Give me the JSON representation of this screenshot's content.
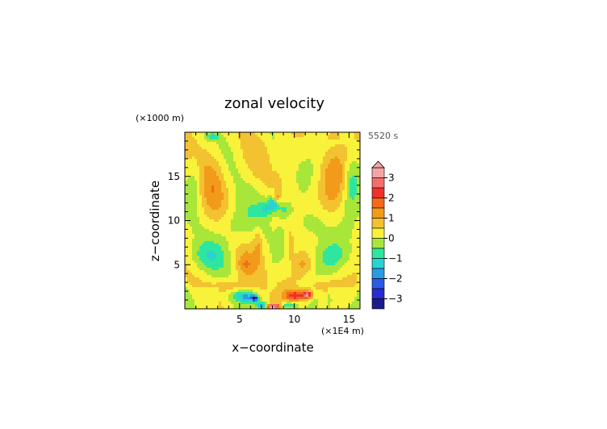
{
  "chart_data": {
    "type": "heatmap",
    "title": "zonal velocity",
    "xlabel": "x−coordinate",
    "ylabel": "z−coordinate",
    "x_unit_label": "(×1E4 m)",
    "y_unit_label": "(×1000 m)",
    "time_label": "5520 s",
    "xlim": [
      0,
      16
    ],
    "ylim": [
      0,
      20
    ],
    "x_ticks": [
      "5",
      "10",
      "15"
    ],
    "x_tick_values": [
      5,
      10,
      15
    ],
    "y_ticks": [
      "5",
      "10",
      "15"
    ],
    "y_tick_values": [
      5,
      10,
      15
    ],
    "colorbar": {
      "tick_labels": [
        "3",
        "2",
        "1",
        "0",
        "−1",
        "−2",
        "−3"
      ],
      "tick_values": [
        3,
        2,
        1,
        0,
        -1,
        -2,
        -3
      ],
      "min": -3.5,
      "max": 3.5,
      "extend": "max",
      "levels": [
        {
          "lo": 3.0,
          "hi": 3.5,
          "color": "#f4a6a6"
        },
        {
          "lo": 2.5,
          "hi": 3.0,
          "color": "#f46e6e"
        },
        {
          "lo": 2.0,
          "hi": 2.5,
          "color": "#f0302a"
        },
        {
          "lo": 1.5,
          "hi": 2.0,
          "color": "#f26a1a"
        },
        {
          "lo": 1.0,
          "hi": 1.5,
          "color": "#f29a1a"
        },
        {
          "lo": 0.5,
          "hi": 1.0,
          "color": "#f2c230"
        },
        {
          "lo": 0.0,
          "hi": 0.5,
          "color": "#f8f23a"
        },
        {
          "lo": -0.5,
          "hi": 0.0,
          "color": "#a8e63a"
        },
        {
          "lo": -1.0,
          "hi": -0.5,
          "color": "#2ee6a0"
        },
        {
          "lo": -1.5,
          "hi": -1.0,
          "color": "#2ad2d2"
        },
        {
          "lo": -2.0,
          "hi": -1.5,
          "color": "#2a9ae6"
        },
        {
          "lo": -2.5,
          "hi": -2.0,
          "color": "#2a5ae6"
        },
        {
          "lo": -3.0,
          "hi": -2.5,
          "color": "#2a2ad2"
        },
        {
          "lo": -3.5,
          "hi": -3.0,
          "color": "#1a1a8a"
        }
      ]
    },
    "features": [
      {
        "x": 2.5,
        "z": 14.5,
        "sx": 1.2,
        "sz": 3.8,
        "v": 0.9
      },
      {
        "x": 13.5,
        "z": 14.5,
        "sx": 1.2,
        "sz": 3.8,
        "v": 0.9
      },
      {
        "x": 15.2,
        "z": 14.5,
        "sx": 0.7,
        "sz": 3.0,
        "v": -1.0
      },
      {
        "x": 0.9,
        "z": 14.5,
        "sx": 0.6,
        "sz": 2.5,
        "v": -0.6
      },
      {
        "x": 8.1,
        "z": 11.9,
        "sx": 0.5,
        "sz": 1.0,
        "v": -1.8
      },
      {
        "x": 8.4,
        "z": 12.6,
        "sx": 0.3,
        "sz": 0.5,
        "v": 1.4
      },
      {
        "x": 7.3,
        "z": 11.3,
        "sx": 0.6,
        "sz": 0.9,
        "v": -0.9
      },
      {
        "x": 9.1,
        "z": 11.3,
        "sx": 0.6,
        "sz": 0.9,
        "v": -0.9
      },
      {
        "x": 4.5,
        "z": 9.5,
        "sx": 1.5,
        "sz": 2.0,
        "v": -0.7
      },
      {
        "x": 11.8,
        "z": 9.5,
        "sx": 1.5,
        "sz": 2.0,
        "v": -0.7
      },
      {
        "x": 2.0,
        "z": 6.0,
        "sx": 1.7,
        "sz": 1.7,
        "v": -0.9
      },
      {
        "x": 13.5,
        "z": 6.0,
        "sx": 1.7,
        "sz": 1.7,
        "v": -0.9
      },
      {
        "x": 5.5,
        "z": 5.0,
        "sx": 0.8,
        "sz": 1.3,
        "v": 0.8
      },
      {
        "x": 10.8,
        "z": 5.0,
        "sx": 0.8,
        "sz": 1.3,
        "v": 0.8
      },
      {
        "x": 6.7,
        "z": 7.5,
        "sx": 0.4,
        "sz": 2.0,
        "v": 0.7
      },
      {
        "x": 9.6,
        "z": 7.5,
        "sx": 0.4,
        "sz": 2.0,
        "v": 0.7
      },
      {
        "x": 4.0,
        "z": 2.6,
        "sx": 1.5,
        "sz": 0.8,
        "v": 0.8
      },
      {
        "x": 12.5,
        "z": 2.6,
        "sx": 1.5,
        "sz": 0.8,
        "v": 0.8
      },
      {
        "x": 5.5,
        "z": 1.4,
        "sx": 1.0,
        "sz": 0.6,
        "v": -1.6
      },
      {
        "x": 6.4,
        "z": 1.2,
        "sx": 0.35,
        "sz": 0.35,
        "v": -2.6
      },
      {
        "x": 10.2,
        "z": 1.5,
        "sx": 1.0,
        "sz": 0.6,
        "v": 2.0
      },
      {
        "x": 11.2,
        "z": 1.6,
        "sx": 0.4,
        "sz": 0.4,
        "v": 2.6
      },
      {
        "x": 8.0,
        "z": 0.25,
        "sx": 0.6,
        "sz": 0.3,
        "v": 3.2
      },
      {
        "x": 7.1,
        "z": 0.4,
        "sx": 0.5,
        "sz": 0.4,
        "v": -2.0
      },
      {
        "x": 9.5,
        "z": 0.4,
        "sx": 0.7,
        "sz": 0.4,
        "v": -1.6
      },
      {
        "x": 2.5,
        "z": 19.5,
        "sx": 0.6,
        "sz": 0.4,
        "v": -1.2
      },
      {
        "x": 13.5,
        "z": 19.6,
        "sx": 0.6,
        "sz": 0.4,
        "v": 0.9
      }
    ]
  }
}
